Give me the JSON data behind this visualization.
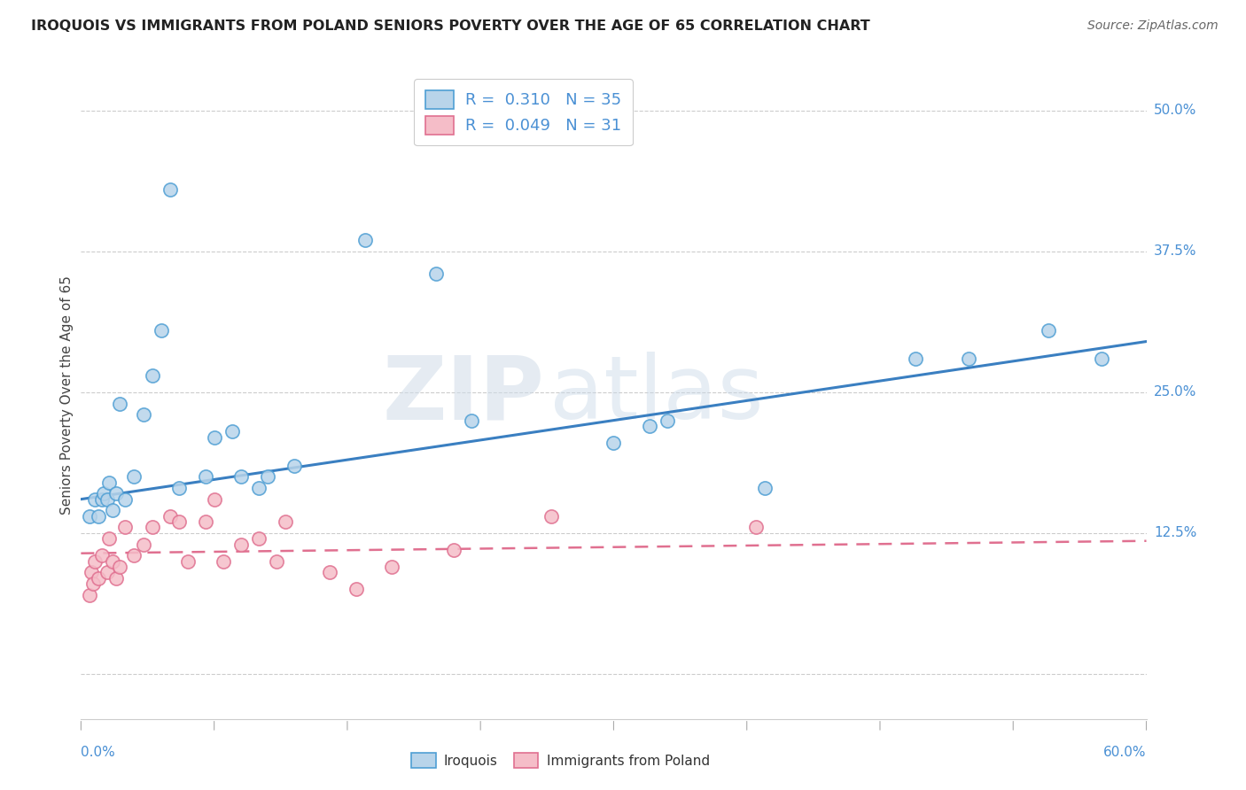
{
  "title": "IROQUOIS VS IMMIGRANTS FROM POLAND SENIORS POVERTY OVER THE AGE OF 65 CORRELATION CHART",
  "source": "Source: ZipAtlas.com",
  "ylabel": "Seniors Poverty Over the Age of 65",
  "xlim": [
    0.0,
    0.6
  ],
  "ylim": [
    -0.04,
    0.535
  ],
  "ytick_vals": [
    0.0,
    0.125,
    0.25,
    0.375,
    0.5
  ],
  "ytick_labels": [
    "",
    "12.5%",
    "25.0%",
    "37.5%",
    "50.0%"
  ],
  "iroquois_color_face": "#b8d4ea",
  "iroquois_color_edge": "#4f9fd4",
  "poland_color_face": "#f5bdc8",
  "poland_color_edge": "#e07090",
  "iroquois_line_color": "#3a7fc1",
  "poland_line_color": "#e07090",
  "background_color": "#ffffff",
  "watermark_zip": "ZIP",
  "watermark_atlas": "atlas",
  "legend1_label": "R =  0.310   N = 35",
  "legend2_label": "R =  0.049   N = 31",
  "legend_text_color": "#4a90d4",
  "bottom_legend_labels": [
    "Iroquois",
    "Immigrants from Poland"
  ],
  "iroquois_x": [
    0.005,
    0.008,
    0.01,
    0.012,
    0.013,
    0.015,
    0.016,
    0.018,
    0.02,
    0.022,
    0.025,
    0.03,
    0.035,
    0.04,
    0.045,
    0.05,
    0.055,
    0.07,
    0.075,
    0.085,
    0.09,
    0.1,
    0.105,
    0.12,
    0.16,
    0.2,
    0.22,
    0.3,
    0.32,
    0.33,
    0.385,
    0.47,
    0.5,
    0.545,
    0.575
  ],
  "iroquois_y": [
    0.14,
    0.155,
    0.14,
    0.155,
    0.16,
    0.155,
    0.17,
    0.145,
    0.16,
    0.24,
    0.155,
    0.175,
    0.23,
    0.265,
    0.305,
    0.43,
    0.165,
    0.175,
    0.21,
    0.215,
    0.175,
    0.165,
    0.175,
    0.185,
    0.385,
    0.355,
    0.225,
    0.205,
    0.22,
    0.225,
    0.165,
    0.28,
    0.28,
    0.305,
    0.28
  ],
  "poland_x": [
    0.005,
    0.006,
    0.007,
    0.008,
    0.01,
    0.012,
    0.015,
    0.016,
    0.018,
    0.02,
    0.022,
    0.025,
    0.03,
    0.035,
    0.04,
    0.05,
    0.055,
    0.06,
    0.07,
    0.075,
    0.08,
    0.09,
    0.1,
    0.11,
    0.115,
    0.14,
    0.155,
    0.175,
    0.21,
    0.265,
    0.38
  ],
  "poland_y": [
    0.07,
    0.09,
    0.08,
    0.1,
    0.085,
    0.105,
    0.09,
    0.12,
    0.1,
    0.085,
    0.095,
    0.13,
    0.105,
    0.115,
    0.13,
    0.14,
    0.135,
    0.1,
    0.135,
    0.155,
    0.1,
    0.115,
    0.12,
    0.1,
    0.135,
    0.09,
    0.075,
    0.095,
    0.11,
    0.14,
    0.13
  ],
  "irq_trend_x": [
    0.0,
    0.6
  ],
  "irq_trend_y": [
    0.155,
    0.295
  ],
  "pol_trend_x": [
    0.0,
    0.6
  ],
  "pol_trend_y": [
    0.107,
    0.118
  ]
}
